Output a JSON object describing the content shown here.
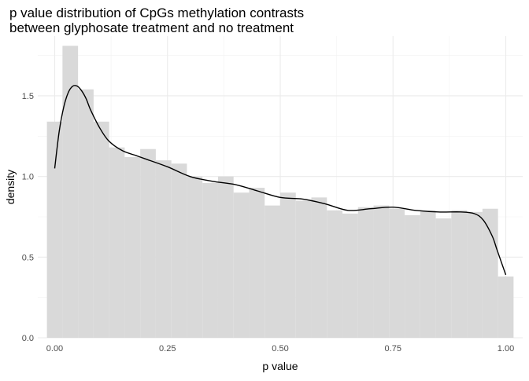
{
  "chart_data": {
    "type": "histogram",
    "title": [
      "p value distribution of CpGs methylation contrasts",
      "between glyphosate treatment and no treatment"
    ],
    "xlabel": "p value",
    "ylabel": "density",
    "xlim": [
      -0.0375,
      1.0375
    ],
    "ylim": [
      0,
      1.87
    ],
    "x_ticks": [
      0,
      0.25,
      0.5,
      0.75,
      1
    ],
    "x_tick_labels": [
      "0.00",
      "0.25",
      "0.50",
      "0.75",
      "1.00"
    ],
    "y_ticks": [
      0,
      0.5,
      1,
      1.5
    ],
    "y_tick_labels": [
      "0.0",
      "0.5",
      "1.0",
      "1.5"
    ],
    "grid": true,
    "bin_width": 0.03448,
    "bins": [
      {
        "x0": -0.01724,
        "x1": 0.01724,
        "value": 1.34
      },
      {
        "x0": 0.01724,
        "x1": 0.05172,
        "value": 1.81
      },
      {
        "x0": 0.05172,
        "x1": 0.08621,
        "value": 1.54
      },
      {
        "x0": 0.08621,
        "x1": 0.12069,
        "value": 1.34
      },
      {
        "x0": 0.12069,
        "x1": 0.15517,
        "value": 1.18
      },
      {
        "x0": 0.15517,
        "x1": 0.18966,
        "value": 1.12
      },
      {
        "x0": 0.18966,
        "x1": 0.22414,
        "value": 1.17
      },
      {
        "x0": 0.22414,
        "x1": 0.25862,
        "value": 1.1
      },
      {
        "x0": 0.25862,
        "x1": 0.2931,
        "value": 1.08
      },
      {
        "x0": 0.2931,
        "x1": 0.32759,
        "value": 1.0
      },
      {
        "x0": 0.32759,
        "x1": 0.36207,
        "value": 0.96
      },
      {
        "x0": 0.36207,
        "x1": 0.39655,
        "value": 1.0
      },
      {
        "x0": 0.39655,
        "x1": 0.43103,
        "value": 0.9
      },
      {
        "x0": 0.43103,
        "x1": 0.46552,
        "value": 0.93
      },
      {
        "x0": 0.46552,
        "x1": 0.5,
        "value": 0.82
      },
      {
        "x0": 0.5,
        "x1": 0.53448,
        "value": 0.9
      },
      {
        "x0": 0.53448,
        "x1": 0.56897,
        "value": 0.85
      },
      {
        "x0": 0.56897,
        "x1": 0.60345,
        "value": 0.87
      },
      {
        "x0": 0.60345,
        "x1": 0.63793,
        "value": 0.79
      },
      {
        "x0": 0.63793,
        "x1": 0.67241,
        "value": 0.77
      },
      {
        "x0": 0.67241,
        "x1": 0.7069,
        "value": 0.81
      },
      {
        "x0": 0.7069,
        "x1": 0.74138,
        "value": 0.82
      },
      {
        "x0": 0.74138,
        "x1": 0.77586,
        "value": 0.8
      },
      {
        "x0": 0.77586,
        "x1": 0.81034,
        "value": 0.76
      },
      {
        "x0": 0.81034,
        "x1": 0.84483,
        "value": 0.79
      },
      {
        "x0": 0.84483,
        "x1": 0.87931,
        "value": 0.74
      },
      {
        "x0": 0.87931,
        "x1": 0.91379,
        "value": 0.79
      },
      {
        "x0": 0.91379,
        "x1": 0.94828,
        "value": 0.78
      },
      {
        "x0": 0.94828,
        "x1": 0.98276,
        "value": 0.8
      },
      {
        "x0": 0.98276,
        "x1": 1.01724,
        "value": 0.38
      }
    ],
    "density_curve": {
      "x": [
        0.0,
        0.01,
        0.02,
        0.03,
        0.04,
        0.05,
        0.06,
        0.07,
        0.08,
        0.1,
        0.12,
        0.15,
        0.18,
        0.2,
        0.25,
        0.3,
        0.35,
        0.4,
        0.45,
        0.5,
        0.55,
        0.6,
        0.65,
        0.7,
        0.75,
        0.8,
        0.85,
        0.9,
        0.93,
        0.95,
        0.97,
        0.98,
        0.99,
        1.0
      ],
      "y": [
        1.05,
        1.28,
        1.43,
        1.52,
        1.56,
        1.56,
        1.53,
        1.48,
        1.41,
        1.3,
        1.22,
        1.16,
        1.13,
        1.11,
        1.06,
        1.0,
        0.97,
        0.95,
        0.91,
        0.87,
        0.86,
        0.83,
        0.79,
        0.8,
        0.81,
        0.79,
        0.78,
        0.78,
        0.77,
        0.73,
        0.63,
        0.55,
        0.47,
        0.39
      ]
    }
  }
}
